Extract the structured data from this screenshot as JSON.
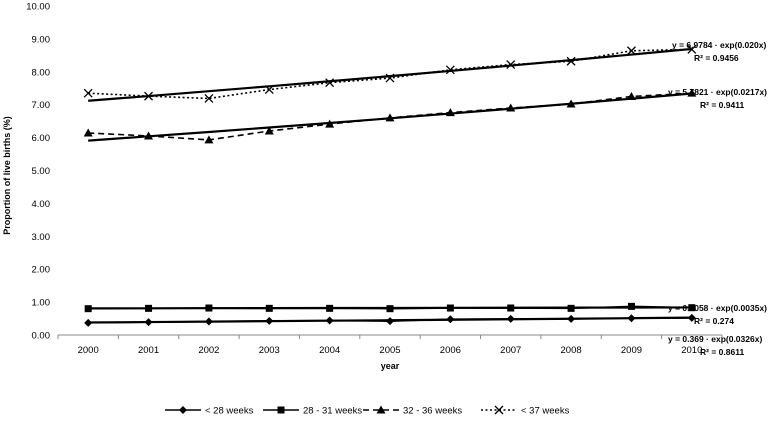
{
  "chart_data": {
    "type": "line",
    "xlabel": "year",
    "ylabel": "Proportion of live births (%)",
    "x": [
      "2000",
      "2001",
      "2002",
      "2003",
      "2004",
      "2005",
      "2006",
      "2007",
      "2008",
      "2009",
      "2010"
    ],
    "ylim": [
      0,
      10
    ],
    "yticks": [
      "0.00",
      "1.00",
      "2.00",
      "3.00",
      "4.00",
      "5.00",
      "6.00",
      "7.00",
      "8.00",
      "9.00",
      "10.00"
    ],
    "grid": false,
    "legend_position": "bottom",
    "series": [
      {
        "name": "< 28 weeks",
        "marker": "diamond",
        "dash": "solid",
        "values": [
          0.37,
          0.39,
          0.41,
          0.43,
          0.44,
          0.42,
          0.48,
          0.49,
          0.49,
          0.51,
          0.52
        ],
        "trend": {
          "a": 0.369,
          "b": 0.0326
        }
      },
      {
        "name": "28 - 31 weeks",
        "marker": "square",
        "dash": "solid",
        "values": [
          0.8,
          0.81,
          0.82,
          0.81,
          0.81,
          0.8,
          0.82,
          0.82,
          0.81,
          0.87,
          0.83
        ],
        "trend": {
          "a": 0.8058,
          "b": 0.0035
        }
      },
      {
        "name": "32 - 36 weeks",
        "marker": "triangle",
        "dash": "dashed",
        "values": [
          6.14,
          6.05,
          5.93,
          6.2,
          6.41,
          6.6,
          6.76,
          6.9,
          7.02,
          7.25,
          7.35
        ],
        "trend": {
          "a": 5.7821,
          "b": 0.0217
        }
      },
      {
        "name": "< 37 weeks",
        "marker": "x",
        "dash": "dotted",
        "values": [
          7.35,
          7.26,
          7.19,
          7.46,
          7.67,
          7.81,
          8.06,
          8.22,
          8.32,
          8.64,
          8.68
        ],
        "trend": {
          "a": 6.9784,
          "b": 0.02
        }
      }
    ],
    "annotations": [
      {
        "line1": "y = 6.9784 · exp(0.020x)",
        "line2": "R² = 0.9456"
      },
      {
        "line1": "y = 5.7821 · exp(0.0217x)",
        "line2": "R² = 0.9411"
      },
      {
        "line1": "y = 0.8058 · exp(0.0035x)",
        "line2": "R² = 0.274"
      },
      {
        "line1": "y = 0.369 · exp(0.0326x)",
        "line2": "R² = 0.8611"
      }
    ]
  }
}
